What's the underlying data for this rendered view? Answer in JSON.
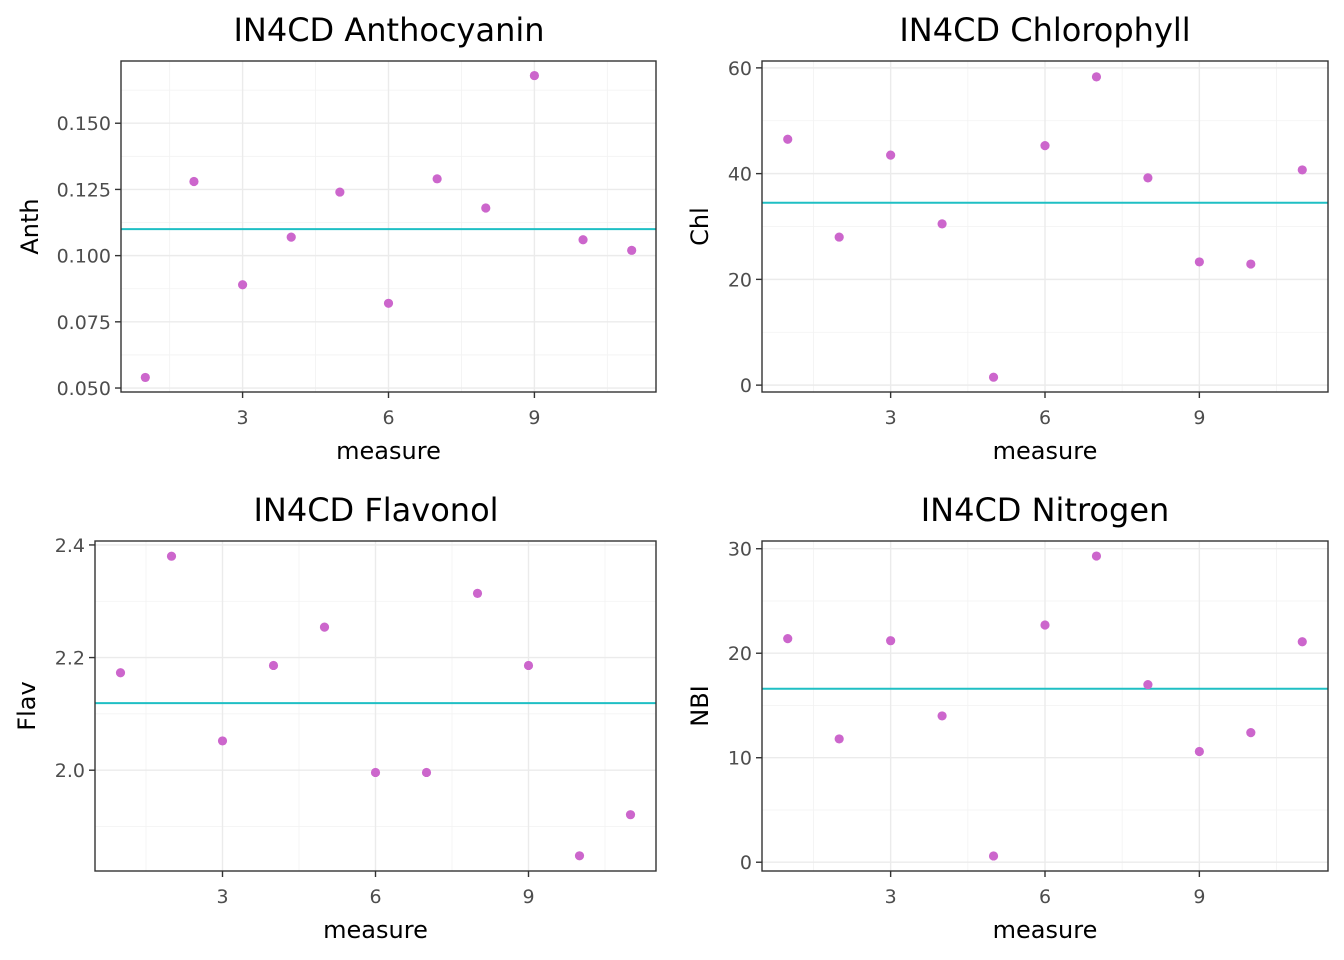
{
  "colors": {
    "point": "#cc66cc",
    "mean_line": "#1fbfc4",
    "panel_border": "#333333",
    "grid": "#ebebeb",
    "tick_text": "#4d4d4d"
  },
  "chart_data": [
    {
      "type": "scatter",
      "title": "IN4CD Anthocyanin",
      "xlabel": "measure",
      "ylabel": "Anth",
      "x": [
        1,
        2,
        3,
        4,
        5,
        6,
        7,
        8,
        9,
        10,
        11
      ],
      "y": [
        0.054,
        0.128,
        0.089,
        0.107,
        0.124,
        0.082,
        0.129,
        0.118,
        0.168,
        0.106,
        0.102
      ],
      "hline": 0.11,
      "xlim": [
        0.5,
        11.5
      ],
      "ylim": [
        0.0485,
        0.1735
      ],
      "xticks": [
        3,
        6,
        9
      ],
      "yticks": [
        0.05,
        0.075,
        0.1,
        0.125,
        0.15
      ],
      "ytick_labels": [
        "0.050",
        "0.075",
        "0.100",
        "0.125",
        "0.150"
      ],
      "grid": true
    },
    {
      "type": "scatter",
      "title": "IN4CD Chlorophyll",
      "xlabel": "measure",
      "ylabel": "Chl",
      "x": [
        1,
        2,
        3,
        4,
        5,
        6,
        7,
        8,
        9,
        10,
        11
      ],
      "y": [
        46.5,
        28.0,
        43.5,
        30.5,
        1.5,
        45.3,
        58.3,
        39.2,
        23.3,
        22.9,
        40.7
      ],
      "hline": 34.5,
      "xlim": [
        0.5,
        11.5
      ],
      "ylim": [
        -1.3,
        61.3
      ],
      "xticks": [
        3,
        6,
        9
      ],
      "yticks": [
        0,
        20,
        40,
        60
      ],
      "ytick_labels": [
        "0",
        "20",
        "40",
        "60"
      ],
      "grid": true
    },
    {
      "type": "scatter",
      "title": "IN4CD Flavonol",
      "xlabel": "measure",
      "ylabel": "Flav",
      "x": [
        1,
        2,
        3,
        4,
        5,
        6,
        7,
        8,
        9,
        10,
        11
      ],
      "y": [
        2.173,
        2.38,
        2.052,
        2.186,
        2.254,
        1.996,
        1.996,
        2.314,
        2.186,
        1.848,
        1.921
      ],
      "hline": 2.119,
      "xlim": [
        0.5,
        11.5
      ],
      "ylim": [
        1.821,
        2.407
      ],
      "xticks": [
        3,
        6,
        9
      ],
      "yticks": [
        2.0,
        2.2,
        2.4
      ],
      "ytick_labels": [
        "2.0",
        "2.2",
        "2.4"
      ],
      "grid": true
    },
    {
      "type": "scatter",
      "title": "IN4CD Nitrogen",
      "xlabel": "measure",
      "ylabel": "NBI",
      "x": [
        1,
        2,
        3,
        4,
        5,
        6,
        7,
        8,
        9,
        10,
        11
      ],
      "y": [
        21.4,
        11.8,
        21.2,
        14.0,
        0.6,
        22.7,
        29.3,
        17.0,
        10.6,
        12.4,
        21.1
      ],
      "hline": 16.6,
      "xlim": [
        0.5,
        11.5
      ],
      "ylim": [
        -0.84,
        30.74
      ],
      "xticks": [
        3,
        6,
        9
      ],
      "yticks": [
        0,
        10,
        20,
        30
      ],
      "ytick_labels": [
        "0",
        "10",
        "20",
        "30"
      ],
      "grid": true
    }
  ]
}
